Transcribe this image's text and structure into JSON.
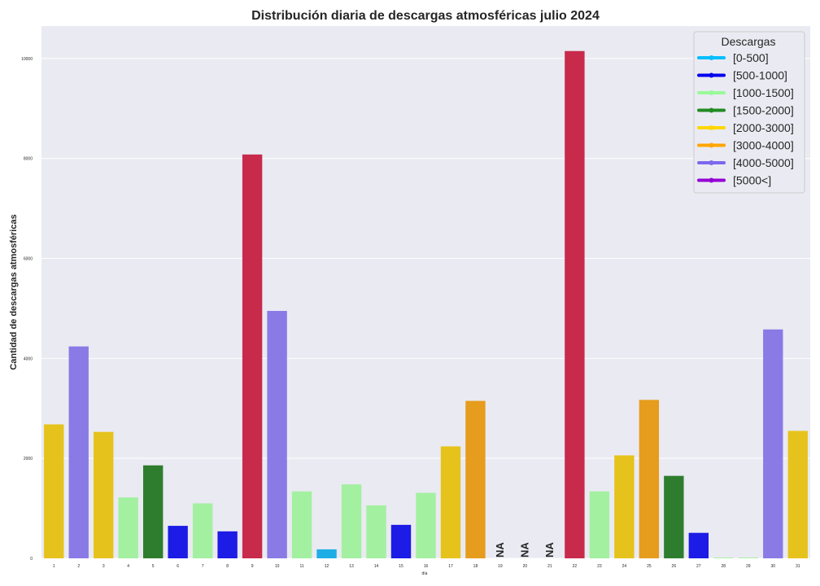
{
  "chart_data": {
    "type": "bar",
    "title": "Distribución diaria de descargas atmosféricas julio 2024",
    "xlabel": "día",
    "ylabel": "Cantidad de descargas atmosféricas",
    "ylim": [
      0,
      10650
    ],
    "yticks": [
      0,
      2000,
      4000,
      6000,
      8000,
      10000
    ],
    "grid": true,
    "categories": [
      "1",
      "2",
      "3",
      "4",
      "5",
      "6",
      "7",
      "8",
      "9",
      "10",
      "11",
      "12",
      "13",
      "14",
      "15",
      "16",
      "17",
      "18",
      "19",
      "20",
      "21",
      "22",
      "23",
      "24",
      "25",
      "26",
      "27",
      "28",
      "29",
      "30",
      "31"
    ],
    "values": [
      2680,
      4240,
      2530,
      1220,
      1860,
      650,
      1100,
      540,
      8080,
      4950,
      1340,
      180,
      1480,
      1060,
      670,
      1310,
      2240,
      3150,
      null,
      null,
      null,
      10150,
      1340,
      2060,
      3170,
      1650,
      510,
      15,
      15,
      4580,
      2550
    ],
    "colors": [
      "#e6c31c",
      "#8a7ae6",
      "#e6c31c",
      "#a3f0a1",
      "#2e7d2e",
      "#1c1ce6",
      "#a3f0a1",
      "#1c1ce6",
      "#c82a4c",
      "#8a7ae6",
      "#a3f0a1",
      "#1eaee6",
      "#a3f0a1",
      "#a3f0a1",
      "#1c1ce6",
      "#a3f0a1",
      "#e6c31c",
      "#e69c1c",
      null,
      null,
      null,
      "#c82a4c",
      "#a3f0a1",
      "#e6c31c",
      "#e69c1c",
      "#2e7d2e",
      "#1c1ce6",
      "#a3f0a1",
      "#a3f0a1",
      "#8a7ae6",
      "#e6c31c"
    ],
    "na_label": "NA",
    "legend": {
      "title": "Descargas",
      "placement": "top-right",
      "entries": [
        {
          "label": "[0-500]",
          "color": "#00bfff"
        },
        {
          "label": "[500-1000]",
          "color": "#0000ee"
        },
        {
          "label": "[1000-1500]",
          "color": "#98fb98"
        },
        {
          "label": "[1500-2000]",
          "color": "#228b22"
        },
        {
          "label": "[2000-3000]",
          "color": "#ffd700"
        },
        {
          "label": "[3000-4000]",
          "color": "#ffa500"
        },
        {
          "label": "[4000-5000]",
          "color": "#7b68ee"
        },
        {
          "label": "[5000<]",
          "color": "#9400d3"
        }
      ]
    }
  }
}
